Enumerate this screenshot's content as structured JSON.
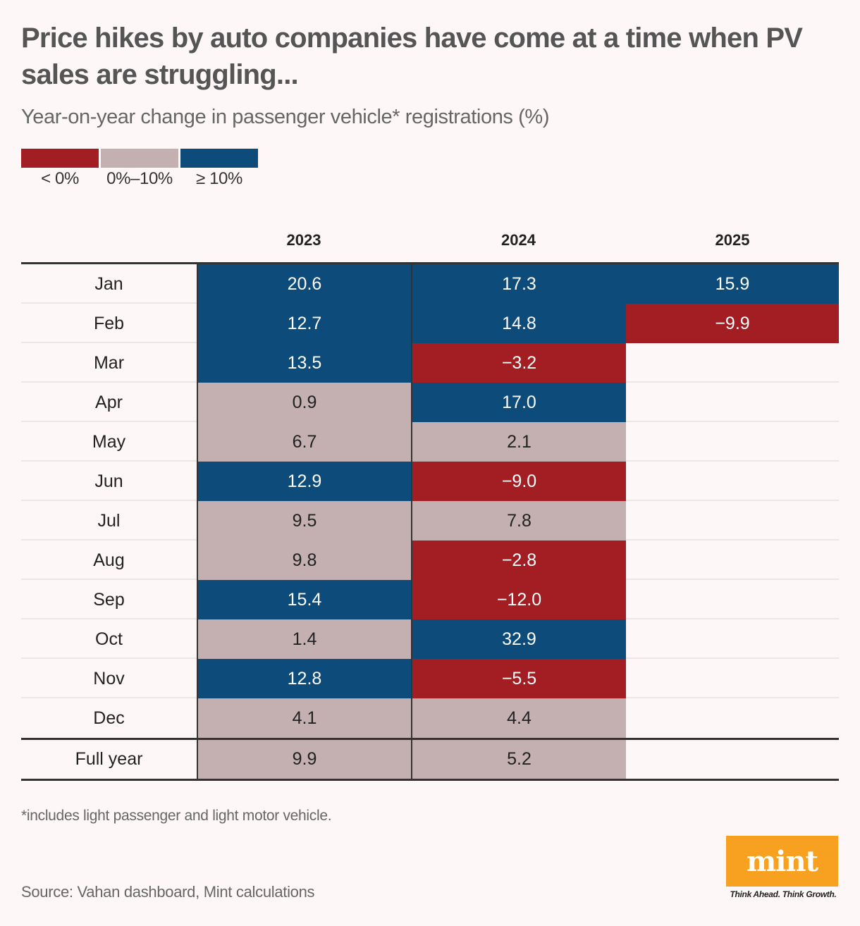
{
  "header": {
    "title": "Price hikes by auto companies have come at a time when PV sales are struggling...",
    "subtitle": "Year-on-year change in passenger vehicle* registrations (%)"
  },
  "legend": [
    {
      "label": "< 0%",
      "color": "#a31e23"
    },
    {
      "label": "0%–10%",
      "color": "#c4afb1"
    },
    {
      "label": "≥ 10%",
      "color": "#0d4b7b"
    }
  ],
  "colors": {
    "negative": "#a31e23",
    "low": "#c4afb1",
    "high": "#0d4b7b",
    "text_on_dark": "#ffffff",
    "text_on_light": "#222222"
  },
  "chart_data": {
    "type": "heatmap",
    "title": "Price hikes by auto companies have come at a time when PV sales are struggling...",
    "subtitle": "Year-on-year change in passenger vehicle* registrations (%)",
    "columns": [
      "2023",
      "2024",
      "2025"
    ],
    "rows": [
      "Jan",
      "Feb",
      "Mar",
      "Apr",
      "May",
      "Jun",
      "Jul",
      "Aug",
      "Sep",
      "Oct",
      "Nov",
      "Dec"
    ],
    "values": [
      [
        "20.6",
        "17.3",
        "15.9"
      ],
      [
        "12.7",
        "14.8",
        "−9.9"
      ],
      [
        "13.5",
        "−3.2",
        null
      ],
      [
        "0.9",
        "17.0",
        null
      ],
      [
        "6.7",
        "2.1",
        null
      ],
      [
        "12.9",
        "−9.0",
        null
      ],
      [
        "9.5",
        "7.8",
        null
      ],
      [
        "9.8",
        "−2.8",
        null
      ],
      [
        "15.4",
        "−12.0",
        null
      ],
      [
        "1.4",
        "32.9",
        null
      ],
      [
        "12.8",
        "−5.5",
        null
      ],
      [
        "4.1",
        "4.4",
        null
      ]
    ],
    "total_row": {
      "label": "Full year",
      "values": [
        "9.9",
        "5.2",
        null
      ]
    },
    "color_bins": [
      {
        "label": "< 0%",
        "max": 0,
        "color": "#a31e23"
      },
      {
        "label": "0%–10%",
        "min": 0,
        "max": 10,
        "color": "#c4afb1"
      },
      {
        "label": "≥ 10%",
        "min": 10,
        "color": "#0d4b7b"
      }
    ],
    "legend_position": "top-left"
  },
  "footer": {
    "footnote": "*includes light passenger and light motor vehicle.",
    "source": "Source: Vahan dashboard, Mint calculations",
    "logo_text": "mint",
    "tagline": "Think Ahead. Think Growth."
  }
}
